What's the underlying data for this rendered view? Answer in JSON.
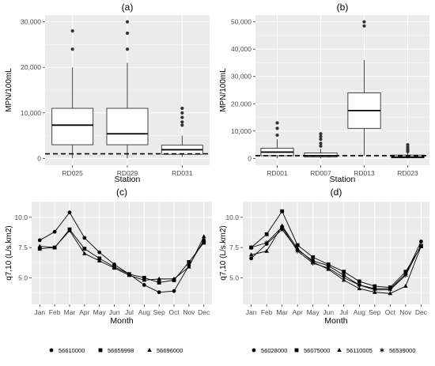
{
  "figure": {
    "panels": [
      "(a)",
      "(b)",
      "(c)",
      "(d)"
    ]
  },
  "chart_data": [
    {
      "panel": "(a)",
      "type": "boxplot",
      "xlabel": "Station",
      "ylabel": "MPN/100mL",
      "ylim": [
        -1500,
        31500
      ],
      "yticks": [
        0,
        10000,
        20000,
        30000
      ],
      "ytick_labels": [
        "0",
        "10,000",
        "20,000",
        "30,000"
      ],
      "reference_line": 1000,
      "grid": true,
      "categories": [
        "RD025",
        "RD029",
        "RD031"
      ],
      "boxes": [
        {
          "category": "RD025",
          "whisker_low": 0,
          "q1": 3000,
          "median": 7300,
          "q3": 11000,
          "whisker_high": 20000,
          "outliers": [
            24000,
            28000
          ]
        },
        {
          "category": "RD029",
          "whisker_low": 0,
          "q1": 3000,
          "median": 5400,
          "q3": 11000,
          "whisker_high": 21000,
          "outliers": [
            24000,
            27500,
            30000
          ]
        },
        {
          "category": "RD031",
          "whisker_low": 300,
          "q1": 900,
          "median": 1900,
          "q3": 2900,
          "whisker_high": 5000,
          "outliers": [
            7300,
            8000,
            9000,
            10000,
            11000
          ]
        }
      ]
    },
    {
      "panel": "(b)",
      "type": "boxplot",
      "xlabel": "Station",
      "ylabel": "MPN/100mL",
      "ylim": [
        -2500,
        52500
      ],
      "yticks": [
        0,
        10000,
        20000,
        30000,
        40000,
        50000
      ],
      "ytick_labels": [
        "0",
        "10,000",
        "20,000",
        "30,000",
        "40,000",
        "50,000"
      ],
      "reference_line": 1000,
      "grid": true,
      "categories": [
        "RD001",
        "RD007",
        "RD013",
        "RD023"
      ],
      "boxes": [
        {
          "category": "RD001",
          "whisker_low": 0,
          "q1": 1000,
          "median": 2300,
          "q3": 3700,
          "whisker_high": 7000,
          "outliers": [
            8500,
            11000,
            13000
          ]
        },
        {
          "category": "RD007",
          "whisker_low": 0,
          "q1": 500,
          "median": 1000,
          "q3": 2000,
          "whisker_high": 3500,
          "outliers": [
            4500,
            5500,
            7000,
            8000,
            9000
          ]
        },
        {
          "category": "RD013",
          "whisker_low": 1000,
          "q1": 11000,
          "median": 17500,
          "q3": 24000,
          "whisker_high": 36000,
          "outliers": [
            48500,
            50000
          ]
        },
        {
          "category": "RD023",
          "whisker_low": 0,
          "q1": 200,
          "median": 500,
          "q3": 1200,
          "whisker_high": 2000,
          "outliers": [
            2500,
            3000,
            3500,
            4200,
            5000
          ]
        }
      ]
    },
    {
      "panel": "(c)",
      "type": "line",
      "xlabel": "Month",
      "ylabel": "q7,10 (L/s.km2)",
      "ylim": [
        2.8,
        11.3
      ],
      "yticks": [
        5.0,
        7.5,
        10.0
      ],
      "ytick_labels": [
        "5.0",
        "7.5",
        "10.0"
      ],
      "grid": true,
      "legend_position": "bottom",
      "categories": [
        "Jan",
        "Feb",
        "Mar",
        "Apr",
        "May",
        "Jun",
        "Jul",
        "Aug",
        "Sep",
        "Oct",
        "Nov",
        "Dec"
      ],
      "series": [
        {
          "name": "56610000",
          "marker": "circle",
          "values": [
            8.1,
            8.8,
            10.4,
            8.3,
            7.1,
            6.1,
            5.3,
            4.4,
            3.8,
            3.9,
            6.0,
            8.1
          ]
        },
        {
          "name": "56659998",
          "marker": "square",
          "values": [
            7.4,
            7.5,
            9.0,
            7.4,
            6.6,
            5.9,
            5.3,
            5.0,
            4.6,
            4.8,
            6.3,
            7.9
          ]
        },
        {
          "name": "56696000",
          "marker": "triangle",
          "values": [
            7.6,
            7.5,
            8.9,
            7.0,
            6.4,
            5.8,
            5.2,
            4.8,
            4.9,
            4.9,
            5.9,
            8.4
          ]
        }
      ]
    },
    {
      "panel": "(d)",
      "type": "line",
      "xlabel": "Month",
      "ylabel": "q7,10 (L/s.km2)",
      "ylim": [
        2.8,
        11.3
      ],
      "yticks": [
        5.0,
        7.5,
        10.0
      ],
      "ytick_labels": [
        "5.0",
        "7.5",
        "10.0"
      ],
      "grid": true,
      "legend_position": "bottom",
      "categories": [
        "Jan",
        "Feb",
        "Mar",
        "Apr",
        "May",
        "Jun",
        "Jul",
        "Aug",
        "Sep",
        "Oct",
        "Nov",
        "Dec"
      ],
      "series": [
        {
          "name": "56028000",
          "marker": "circle",
          "values": [
            6.6,
            7.8,
            9.0,
            7.3,
            6.4,
            6.0,
            5.2,
            4.4,
            4.1,
            4.1,
            5.3,
            8.0
          ]
        },
        {
          "name": "56075000",
          "marker": "square",
          "values": [
            7.5,
            8.6,
            10.5,
            7.7,
            6.7,
            6.1,
            5.5,
            4.7,
            4.3,
            4.2,
            5.5,
            7.6
          ]
        },
        {
          "name": "56110005",
          "marker": "triangle",
          "values": [
            6.9,
            7.2,
            9.3,
            7.4,
            6.3,
            5.7,
            4.8,
            4.1,
            3.8,
            3.7,
            4.3,
            7.6
          ]
        },
        {
          "name": "56539000",
          "marker": "asterisk",
          "values": [
            7.5,
            7.9,
            9.2,
            7.2,
            6.2,
            5.8,
            5.0,
            4.4,
            4.0,
            4.0,
            5.2,
            7.7
          ]
        }
      ]
    }
  ]
}
